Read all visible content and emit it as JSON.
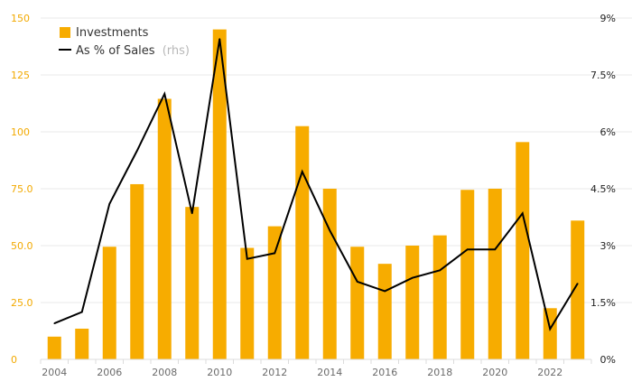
{
  "colors": {
    "bar": "#f7ac00",
    "line": "#000000",
    "left_axis_text": "#f2a900",
    "right_axis_text": "#222222",
    "grid": "#e8e8e8"
  },
  "legend": {
    "investments_label": "Investments",
    "sales_label": "As % of Sales",
    "sales_suffix": "(rhs)"
  },
  "chart_data": {
    "type": "bar",
    "grid": true,
    "legend_position": "top-left",
    "x": [
      2004,
      2005,
      2006,
      2007,
      2008,
      2009,
      2010,
      2011,
      2012,
      2013,
      2014,
      2015,
      2016,
      2017,
      2018,
      2019,
      2020,
      2021,
      2022,
      2023
    ],
    "x_tick_labels": [
      "2004",
      "2006",
      "2008",
      "2010",
      "2012",
      "2014",
      "2016",
      "2018",
      "2020",
      "2022"
    ],
    "y_left": {
      "ticks": [
        "0",
        "25.0",
        "50.0",
        "75.0",
        "100",
        "125",
        "150"
      ],
      "ylim": [
        0,
        150
      ]
    },
    "y_right": {
      "ticks": [
        "0%",
        "1.5%",
        "3%",
        "4.5%",
        "6%",
        "7.5%",
        "9%"
      ],
      "ylim": [
        0,
        9
      ]
    },
    "series": [
      {
        "name": "Investments",
        "type": "bar",
        "axis": "left",
        "values": [
          10,
          13.5,
          49.5,
          77,
          114.5,
          67,
          145,
          49,
          58.5,
          102.5,
          75,
          49.5,
          42,
          50,
          54.5,
          74.5,
          75,
          95.5,
          22.5,
          61
        ]
      },
      {
        "name": "As % of Sales (rhs)",
        "type": "line",
        "axis": "right",
        "values": [
          0.95,
          1.25,
          4.1,
          5.5,
          7.0,
          3.85,
          8.45,
          2.65,
          2.8,
          4.95,
          3.4,
          2.05,
          1.8,
          2.15,
          2.35,
          2.9,
          2.9,
          3.85,
          0.8,
          2.0
        ]
      }
    ]
  }
}
